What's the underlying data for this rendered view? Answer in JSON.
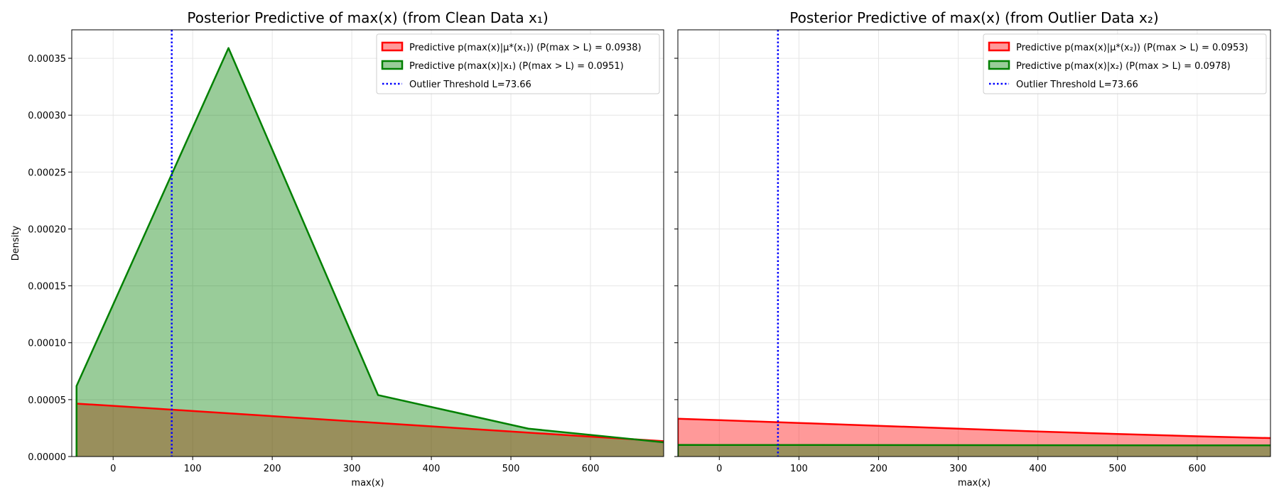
{
  "chart_data": [
    {
      "type": "area",
      "title": "Posterior Predictive of max(x) (from Clean Data x₁)",
      "xlabel": "max(x)",
      "ylabel": "Density",
      "xlim": [
        -52,
        692
      ],
      "ylim": [
        0,
        0.000375
      ],
      "x_ticks": [
        0,
        100,
        200,
        300,
        400,
        500,
        600
      ],
      "y_ticks": [
        0,
        5e-05,
        0.0001,
        0.00015,
        0.0002,
        0.00025,
        0.0003,
        0.00035
      ],
      "y_tick_labels": [
        "0.00000",
        "0.00005",
        "0.00010",
        "0.00015",
        "0.00020",
        "0.00025",
        "0.00030",
        "0.00035"
      ],
      "grid": true,
      "legend_position": "top-right",
      "threshold": {
        "label": "Outlier Threshold L=73.66",
        "x": 73.66,
        "color": "#0000ff"
      },
      "series": [
        {
          "name": "Predictive p(max(x)|μ*(x₁)) (P(max > L) = 0.0938)",
          "edge_color": "#ff0000",
          "fill_color": "#ff0000",
          "x": [
            -46,
            0,
            100,
            200,
            300,
            400,
            500,
            600,
            692
          ],
          "values": [
            4.65e-05,
            4.45e-05,
            4e-05,
            3.55e-05,
            3.1e-05,
            2.65e-05,
            2.2e-05,
            1.75e-05,
            1.35e-05
          ]
        },
        {
          "name": "Predictive p(max(x)|x₁) (P(max > L) = 0.0951)",
          "edge_color": "#008000",
          "fill_color": "#008000",
          "x": [
            -46,
            145,
            333,
            522,
            692
          ],
          "values": [
            6.2e-05,
            0.000359,
            5.4e-05,
            2.45e-05,
            1.25e-05
          ]
        }
      ]
    },
    {
      "type": "area",
      "title": "Posterior Predictive of max(x) (from Outlier Data x₂)",
      "xlabel": "max(x)",
      "ylabel": "",
      "xlim": [
        -52,
        692
      ],
      "ylim": [
        0,
        0.000375
      ],
      "x_ticks": [
        0,
        100,
        200,
        300,
        400,
        500,
        600
      ],
      "grid": true,
      "legend_position": "top-right",
      "threshold": {
        "label": "Outlier Threshold L=73.66",
        "x": 73.66,
        "color": "#0000ff"
      },
      "series": [
        {
          "name": "Predictive p(max(x)|μ*(x₂)) (P(max > L) = 0.0953)",
          "edge_color": "#ff0000",
          "fill_color": "#ff0000",
          "x": [
            -52,
            0,
            100,
            200,
            300,
            400,
            500,
            600,
            692
          ],
          "values": [
            3.32e-05,
            3.2e-05,
            2.95e-05,
            2.7e-05,
            2.45e-05,
            2.2e-05,
            1.98e-05,
            1.78e-05,
            1.62e-05
          ]
        },
        {
          "name": "Predictive p(max(x)|x₂) (P(max > L) = 0.0978)",
          "edge_color": "#008000",
          "fill_color": "#008000",
          "x": [
            -52,
            692
          ],
          "values": [
            1.02e-05,
            9.8e-06
          ]
        }
      ]
    }
  ]
}
